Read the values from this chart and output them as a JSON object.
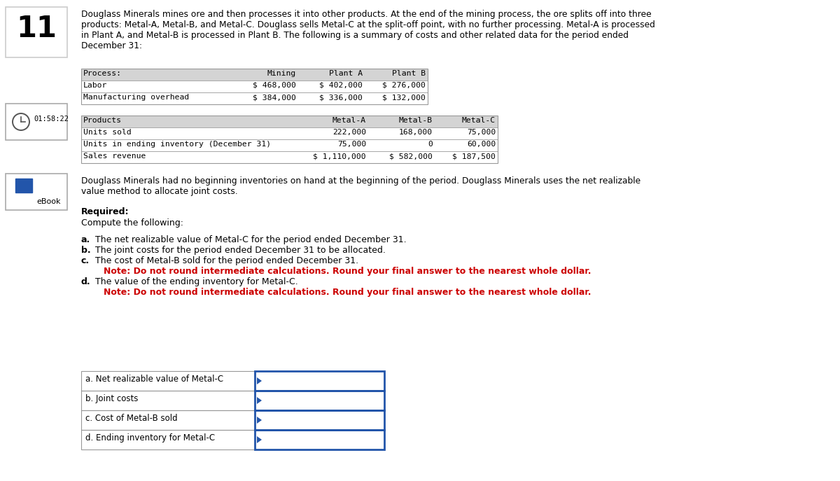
{
  "number": "11",
  "description_lines": [
    "Douglass Minerals mines ore and then processes it into other products. At the end of the mining process, the ore splits off into three",
    "products: Metal-A, Metal-B, and Metal-C. Douglass sells Metal-C at the split-off point, with no further processing. Metal-A is processed",
    "in Plant A, and Metal-B is processed in Plant B. The following is a summary of costs and other related data for the period ended",
    "December 31:"
  ],
  "process_headers": [
    "Process:",
    "Mining",
    "Plant A",
    "Plant B"
  ],
  "process_rows": [
    [
      "Labor",
      "$ 468,000",
      "$ 402,000",
      "$ 276,000"
    ],
    [
      "Manufacturing overhead",
      "$ 384,000",
      "$ 336,000",
      "$ 132,000"
    ]
  ],
  "products_headers": [
    "Products",
    "Metal-A",
    "Metal-B",
    "Metal-C"
  ],
  "products_rows": [
    [
      "Units sold",
      "222,000",
      "168,000",
      "75,000"
    ],
    [
      "Units in ending inventory (December 31)",
      "75,000",
      "0",
      "60,000"
    ],
    [
      "Sales revenue",
      "$ 1,110,000",
      "$ 582,000",
      "$ 187,500"
    ]
  ],
  "paragraph_lines": [
    "Douglass Minerals had no beginning inventories on hand at the beginning of the period. Douglass Minerals uses the net realizable",
    "value method to allocate joint costs."
  ],
  "required_label": "Required:",
  "compute_label": "Compute the following:",
  "lettered_items": [
    {
      "letter": "a.",
      "text": "The net realizable value of Metal-C for the period ended December 31.",
      "note": null
    },
    {
      "letter": "b.",
      "text": "The joint costs for the period ended December 31 to be allocated.",
      "note": null
    },
    {
      "letter": "c.",
      "text": "The cost of Metal-B sold for the period ended December 31.",
      "note": "Note: Do not round intermediate calculations. Round your final answer to the nearest whole dollar."
    },
    {
      "letter": "d.",
      "text": "The value of the ending inventory for Metal-C.",
      "note": "Note: Do not round intermediate calculations. Round your final answer to the nearest whole dollar."
    }
  ],
  "answer_labels": [
    "a. Net realizable value of Metal-C",
    "b. Joint costs",
    "c. Cost of Metal-B sold",
    "d. Ending inventory for Metal-C"
  ],
  "timer_text": "01:58:22",
  "ebook_text": "eBook",
  "bg_color": "#ffffff",
  "table_header_bg": "#d4d4d4",
  "table_border": "#999999",
  "answer_border": "#2255aa",
  "red_color": "#cc0000"
}
